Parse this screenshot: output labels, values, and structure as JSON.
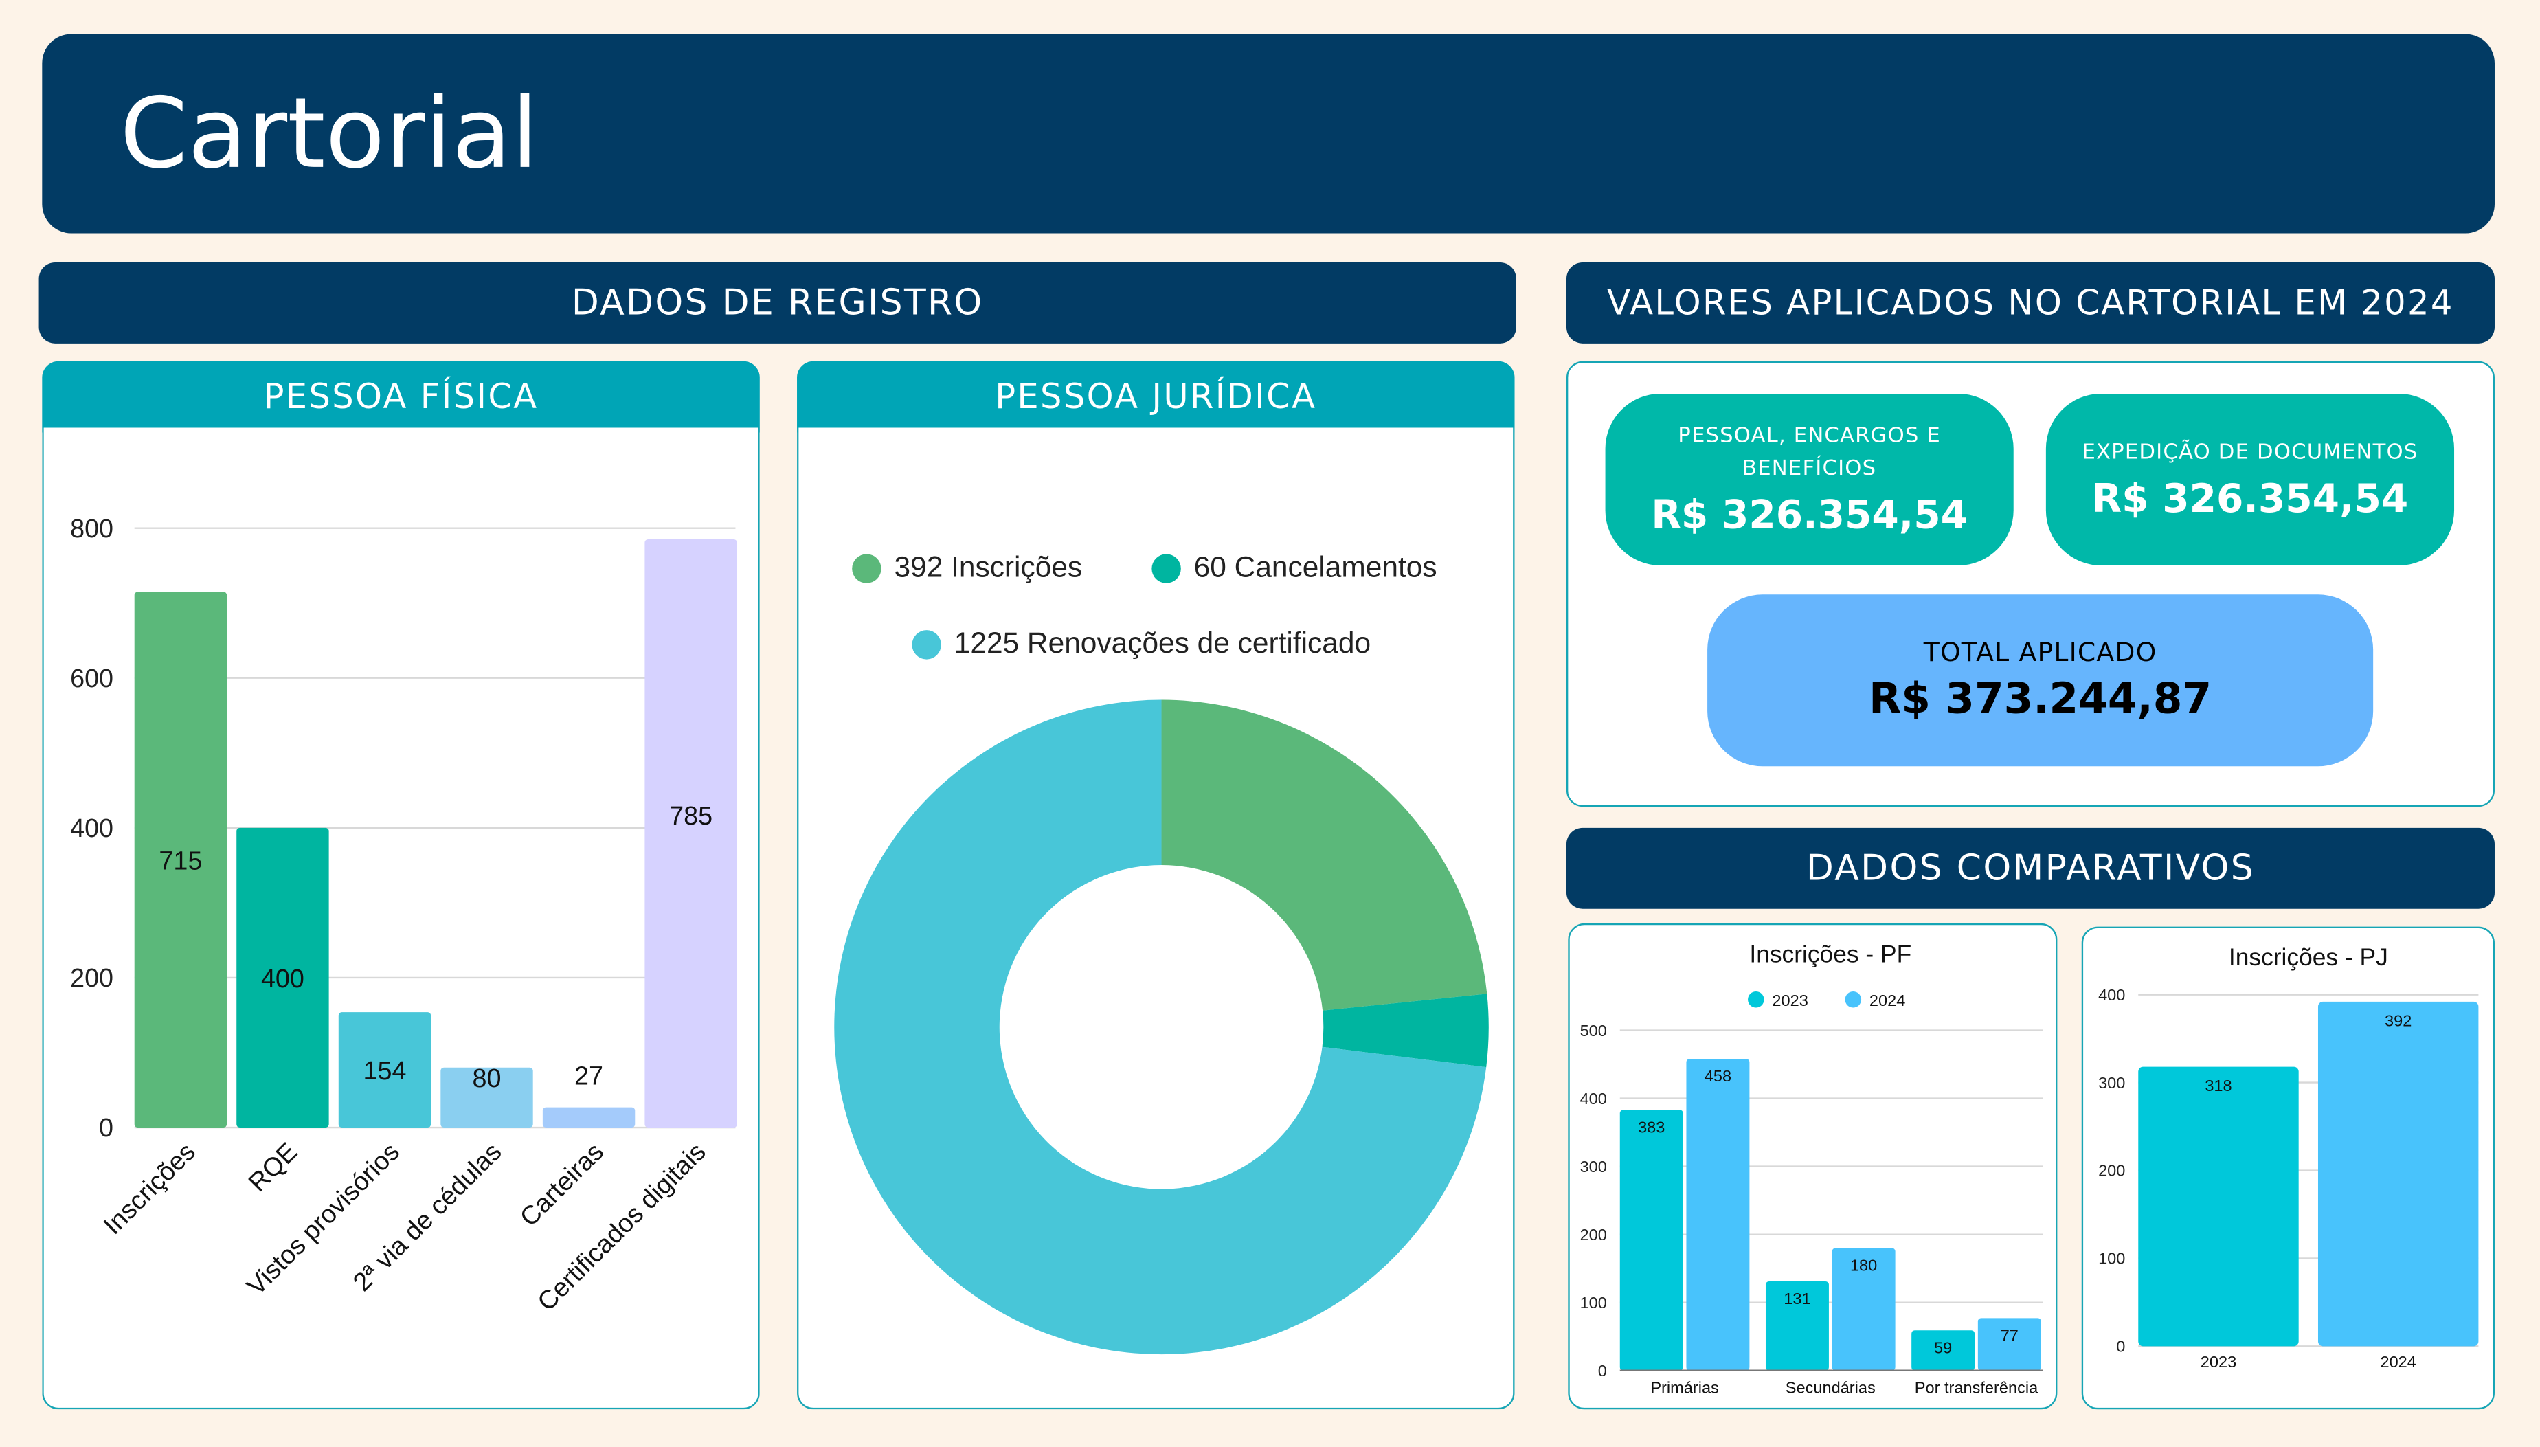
{
  "header": {
    "title": "Cartorial"
  },
  "sections": {
    "registro": "DADOS DE REGISTRO",
    "valores": "VALORES APLICADOS NO CARTORIAL EM 2024",
    "comparativos": "DADOS COMPARATIVOS",
    "pessoa_fisica": "PESSOA FÍSICA",
    "pessoa_juridica": "PESSOA JURÍDICA"
  },
  "values": {
    "pessoal": {
      "label": "PESSOAL, ENCARGOS E BENEFÍCIOS",
      "value": "R$ 326.354,54"
    },
    "expedicao": {
      "label": "EXPEDIÇÃO DE DOCUMENTOS",
      "value": "R$ 326.354,54"
    },
    "total": {
      "label": "TOTAL APLICADO",
      "value": "R$ 373.244,87"
    }
  },
  "colors": {
    "navy": "#023B64",
    "teal": "#00A5B6",
    "card_teal": "#00B8A9",
    "card_blue": "#66B5FD",
    "background": "#FDF3E8"
  },
  "chart_data": [
    {
      "id": "pf",
      "type": "bar",
      "title": "",
      "categories": [
        "Inscrições",
        "RQE",
        "Vistos provisórios",
        "2ª via de cédulas",
        "Carteiras",
        "Certificados digitais"
      ],
      "values": [
        715,
        400,
        154,
        80,
        27,
        785
      ],
      "colors": [
        "#5BB87A",
        "#00B5A0",
        "#48C6D8",
        "#8ACFF0",
        "#A4CBFB",
        "#D6D2FF"
      ],
      "yticks": [
        "0",
        "200",
        "400",
        "600",
        "800"
      ],
      "ylim": [
        0,
        800
      ],
      "grid": true
    },
    {
      "id": "pj",
      "type": "pie",
      "donut": true,
      "labels": [
        "392 Inscrições",
        "60 Cancelamentos",
        "1225 Renovações de certificado"
      ],
      "values": [
        392,
        60,
        1225
      ],
      "colors": [
        "#5BB87A",
        "#00B5A0",
        "#48C6D8"
      ],
      "legend": "top"
    },
    {
      "id": "comp_pf",
      "type": "bar",
      "title": "Inscrições - PF",
      "categories": [
        "Primárias",
        "Secundárias",
        "Por transferência"
      ],
      "series": [
        {
          "name": "2023",
          "values": [
            383,
            131,
            59
          ],
          "color": "#00C8DA"
        },
        {
          "name": "2024",
          "values": [
            458,
            180,
            77
          ],
          "color": "#48C3FC"
        }
      ],
      "yticks": [
        "0",
        "100",
        "200",
        "300",
        "400",
        "500"
      ],
      "ylim": [
        0,
        500
      ],
      "grid": true,
      "legend": "top"
    },
    {
      "id": "comp_pj",
      "type": "bar",
      "title": "Inscrições - PJ",
      "categories": [
        "2023",
        "2024"
      ],
      "values": [
        318,
        392
      ],
      "colors": [
        "#00C8DA",
        "#48C3FC"
      ],
      "yticks": [
        "0",
        "100",
        "200",
        "300",
        "400"
      ],
      "ylim": [
        0,
        400
      ],
      "grid": true
    }
  ]
}
